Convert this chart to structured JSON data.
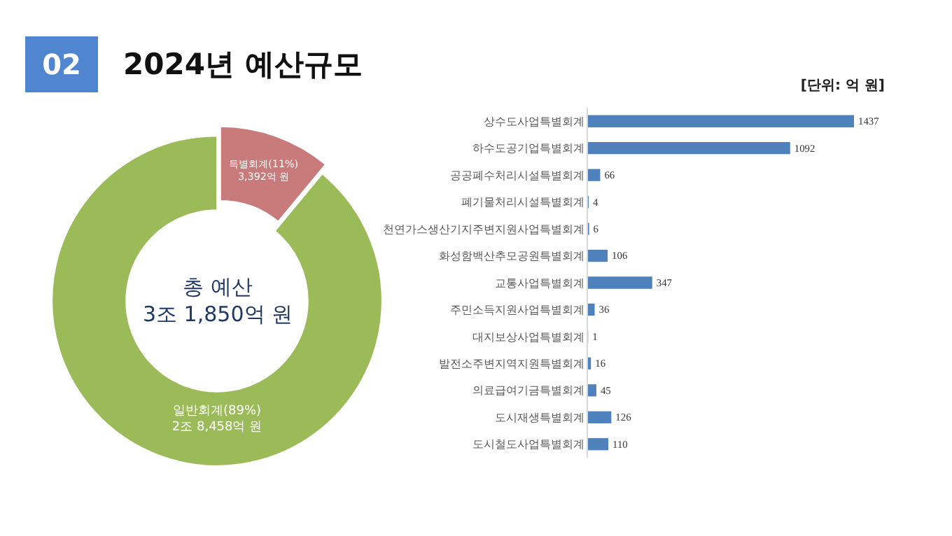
{
  "chart_data": [
    {
      "type": "donut",
      "title": "2024년 예산규모",
      "annotations": [
        "02",
        "총 예산\n3조 1,850억 원"
      ],
      "categories": [
        "특별회계",
        "일반회계"
      ],
      "values": [
        11,
        89
      ],
      "colors": [
        "#c97b7b",
        "#9bbb59"
      ],
      "value_labels": [
        "(11%)\n3,392억 원",
        "(89%)\n2조 8,458억 원"
      ],
      "legend": false
    },
    {
      "type": "bar",
      "orientation": "horizontal",
      "annotations": [
        "[단위: 억 원]"
      ],
      "categories": [
        "상수도사업특별회계",
        "하수도공기업특별회계",
        "공공폐수처리시설특별회계",
        "폐기물처리시설특별회계",
        "천연가스생산기지주변지원사업특별회계",
        "화성함백산추모공원특별회계",
        "교통사업특별회계",
        "주민소득지원사업특별회계",
        "대지보상사업특별회계",
        "발전소주변지역지원특별회계",
        "의료급여기금특별회계",
        "도시재생특별회계",
        "도시철도사업특별회계"
      ],
      "values": [
        1437,
        1092,
        66,
        4,
        6,
        106,
        347,
        36,
        1,
        16,
        45,
        126,
        110
      ],
      "color": "#4f81bd",
      "data_labels": true,
      "legend": false
    }
  ]
}
